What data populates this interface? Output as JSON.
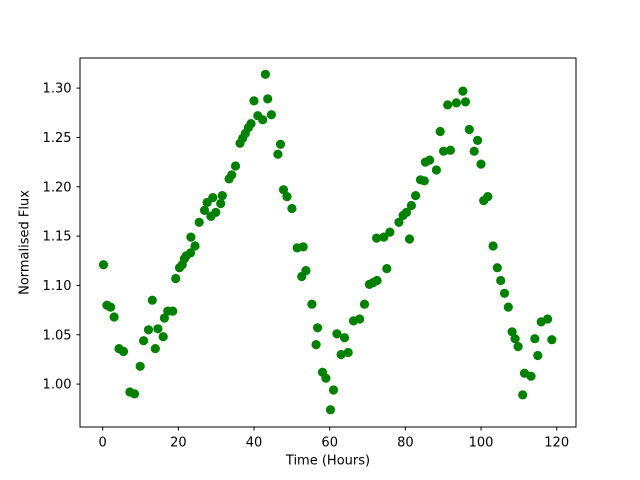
{
  "figure": {
    "background_color": "#ffffff",
    "plot_background_color": "#ffffff",
    "spine_color": "#000000"
  },
  "chart_data": {
    "type": "scatter",
    "title": "",
    "xlabel": "Time (Hours)",
    "ylabel": "Normalised Flux",
    "xlim": [
      -6.0,
      125.1
    ],
    "ylim": [
      0.9565,
      1.3305
    ],
    "xticks": [
      0,
      20,
      40,
      60,
      80,
      100,
      120
    ],
    "xtick_labels": [
      "0",
      "20",
      "40",
      "60",
      "80",
      "100",
      "120"
    ],
    "yticks": [
      1.0,
      1.05,
      1.1,
      1.15,
      1.2,
      1.25,
      1.3
    ],
    "ytick_labels": [
      "1.00",
      "1.05",
      "1.10",
      "1.15",
      "1.20",
      "1.25",
      "1.30"
    ],
    "grid": false,
    "legend_position": "none",
    "marker": {
      "shape": "circle",
      "color": "#008000",
      "radius_px": 4.6
    },
    "series": [
      {
        "name": "normalised-flux-light-curve",
        "x": [
          0.2,
          1.1,
          2.1,
          3.0,
          4.3,
          5.5,
          7.2,
          8.4,
          9.9,
          10.8,
          12.1,
          13.1,
          13.9,
          14.6,
          16.0,
          16.3,
          17.2,
          18.5,
          19.3,
          20.3,
          21.0,
          21.6,
          22.1,
          23.2,
          23.3,
          24.4,
          25.5,
          26.9,
          27.6,
          28.6,
          29.1,
          29.9,
          31.2,
          31.6,
          33.4,
          34.1,
          35.1,
          36.3,
          37.0,
          37.7,
          38.5,
          39.2,
          40.0,
          41.0,
          42.3,
          43.0,
          43.6,
          44.6,
          46.3,
          47.0,
          47.8,
          48.7,
          50.0,
          51.4,
          52.6,
          53.0,
          53.7,
          55.3,
          56.4,
          56.8,
          58.1,
          59.0,
          60.2,
          61.0,
          61.9,
          63.0,
          63.9,
          64.9,
          66.3,
          67.9,
          69.2,
          70.5,
          71.5,
          72.4,
          72.5,
          74.3,
          75.1,
          75.9,
          78.3,
          79.4,
          80.3,
          81.1,
          81.6,
          82.7,
          84.0,
          85.0,
          85.3,
          86.4,
          88.2,
          89.2,
          90.1,
          91.2,
          91.9,
          93.5,
          95.2,
          95.9,
          96.9,
          98.2,
          99.1,
          100.0,
          100.7,
          101.8,
          103.2,
          104.3,
          105.2,
          106.2,
          107.2,
          108.2,
          109.0,
          109.8,
          111.0,
          111.5,
          113.2,
          114.2,
          115.0,
          115.9,
          117.6,
          118.7
        ],
        "y": [
          1.121,
          1.08,
          1.078,
          1.068,
          1.036,
          1.033,
          0.992,
          0.99,
          1.018,
          1.044,
          1.055,
          1.085,
          1.036,
          1.056,
          1.048,
          1.067,
          1.074,
          1.074,
          1.107,
          1.118,
          1.121,
          1.127,
          1.13,
          1.133,
          1.149,
          1.14,
          1.164,
          1.176,
          1.184,
          1.17,
          1.189,
          1.174,
          1.183,
          1.191,
          1.208,
          1.212,
          1.221,
          1.244,
          1.249,
          1.254,
          1.26,
          1.264,
          1.287,
          1.272,
          1.268,
          1.314,
          1.289,
          1.273,
          1.233,
          1.243,
          1.197,
          1.19,
          1.178,
          1.138,
          1.109,
          1.139,
          1.115,
          1.081,
          1.04,
          1.057,
          1.012,
          1.006,
          0.974,
          0.994,
          1.051,
          1.03,
          1.047,
          1.032,
          1.064,
          1.066,
          1.081,
          1.101,
          1.103,
          1.148,
          1.105,
          1.149,
          1.117,
          1.154,
          1.164,
          1.171,
          1.174,
          1.147,
          1.181,
          1.191,
          1.207,
          1.206,
          1.225,
          1.227,
          1.217,
          1.256,
          1.236,
          1.283,
          1.237,
          1.285,
          1.297,
          1.286,
          1.258,
          1.236,
          1.247,
          1.223,
          1.186,
          1.19,
          1.14,
          1.118,
          1.105,
          1.092,
          1.078,
          1.053,
          1.046,
          1.038,
          0.989,
          1.011,
          1.008,
          1.046,
          1.029,
          1.063,
          1.066,
          1.045
        ]
      }
    ]
  }
}
